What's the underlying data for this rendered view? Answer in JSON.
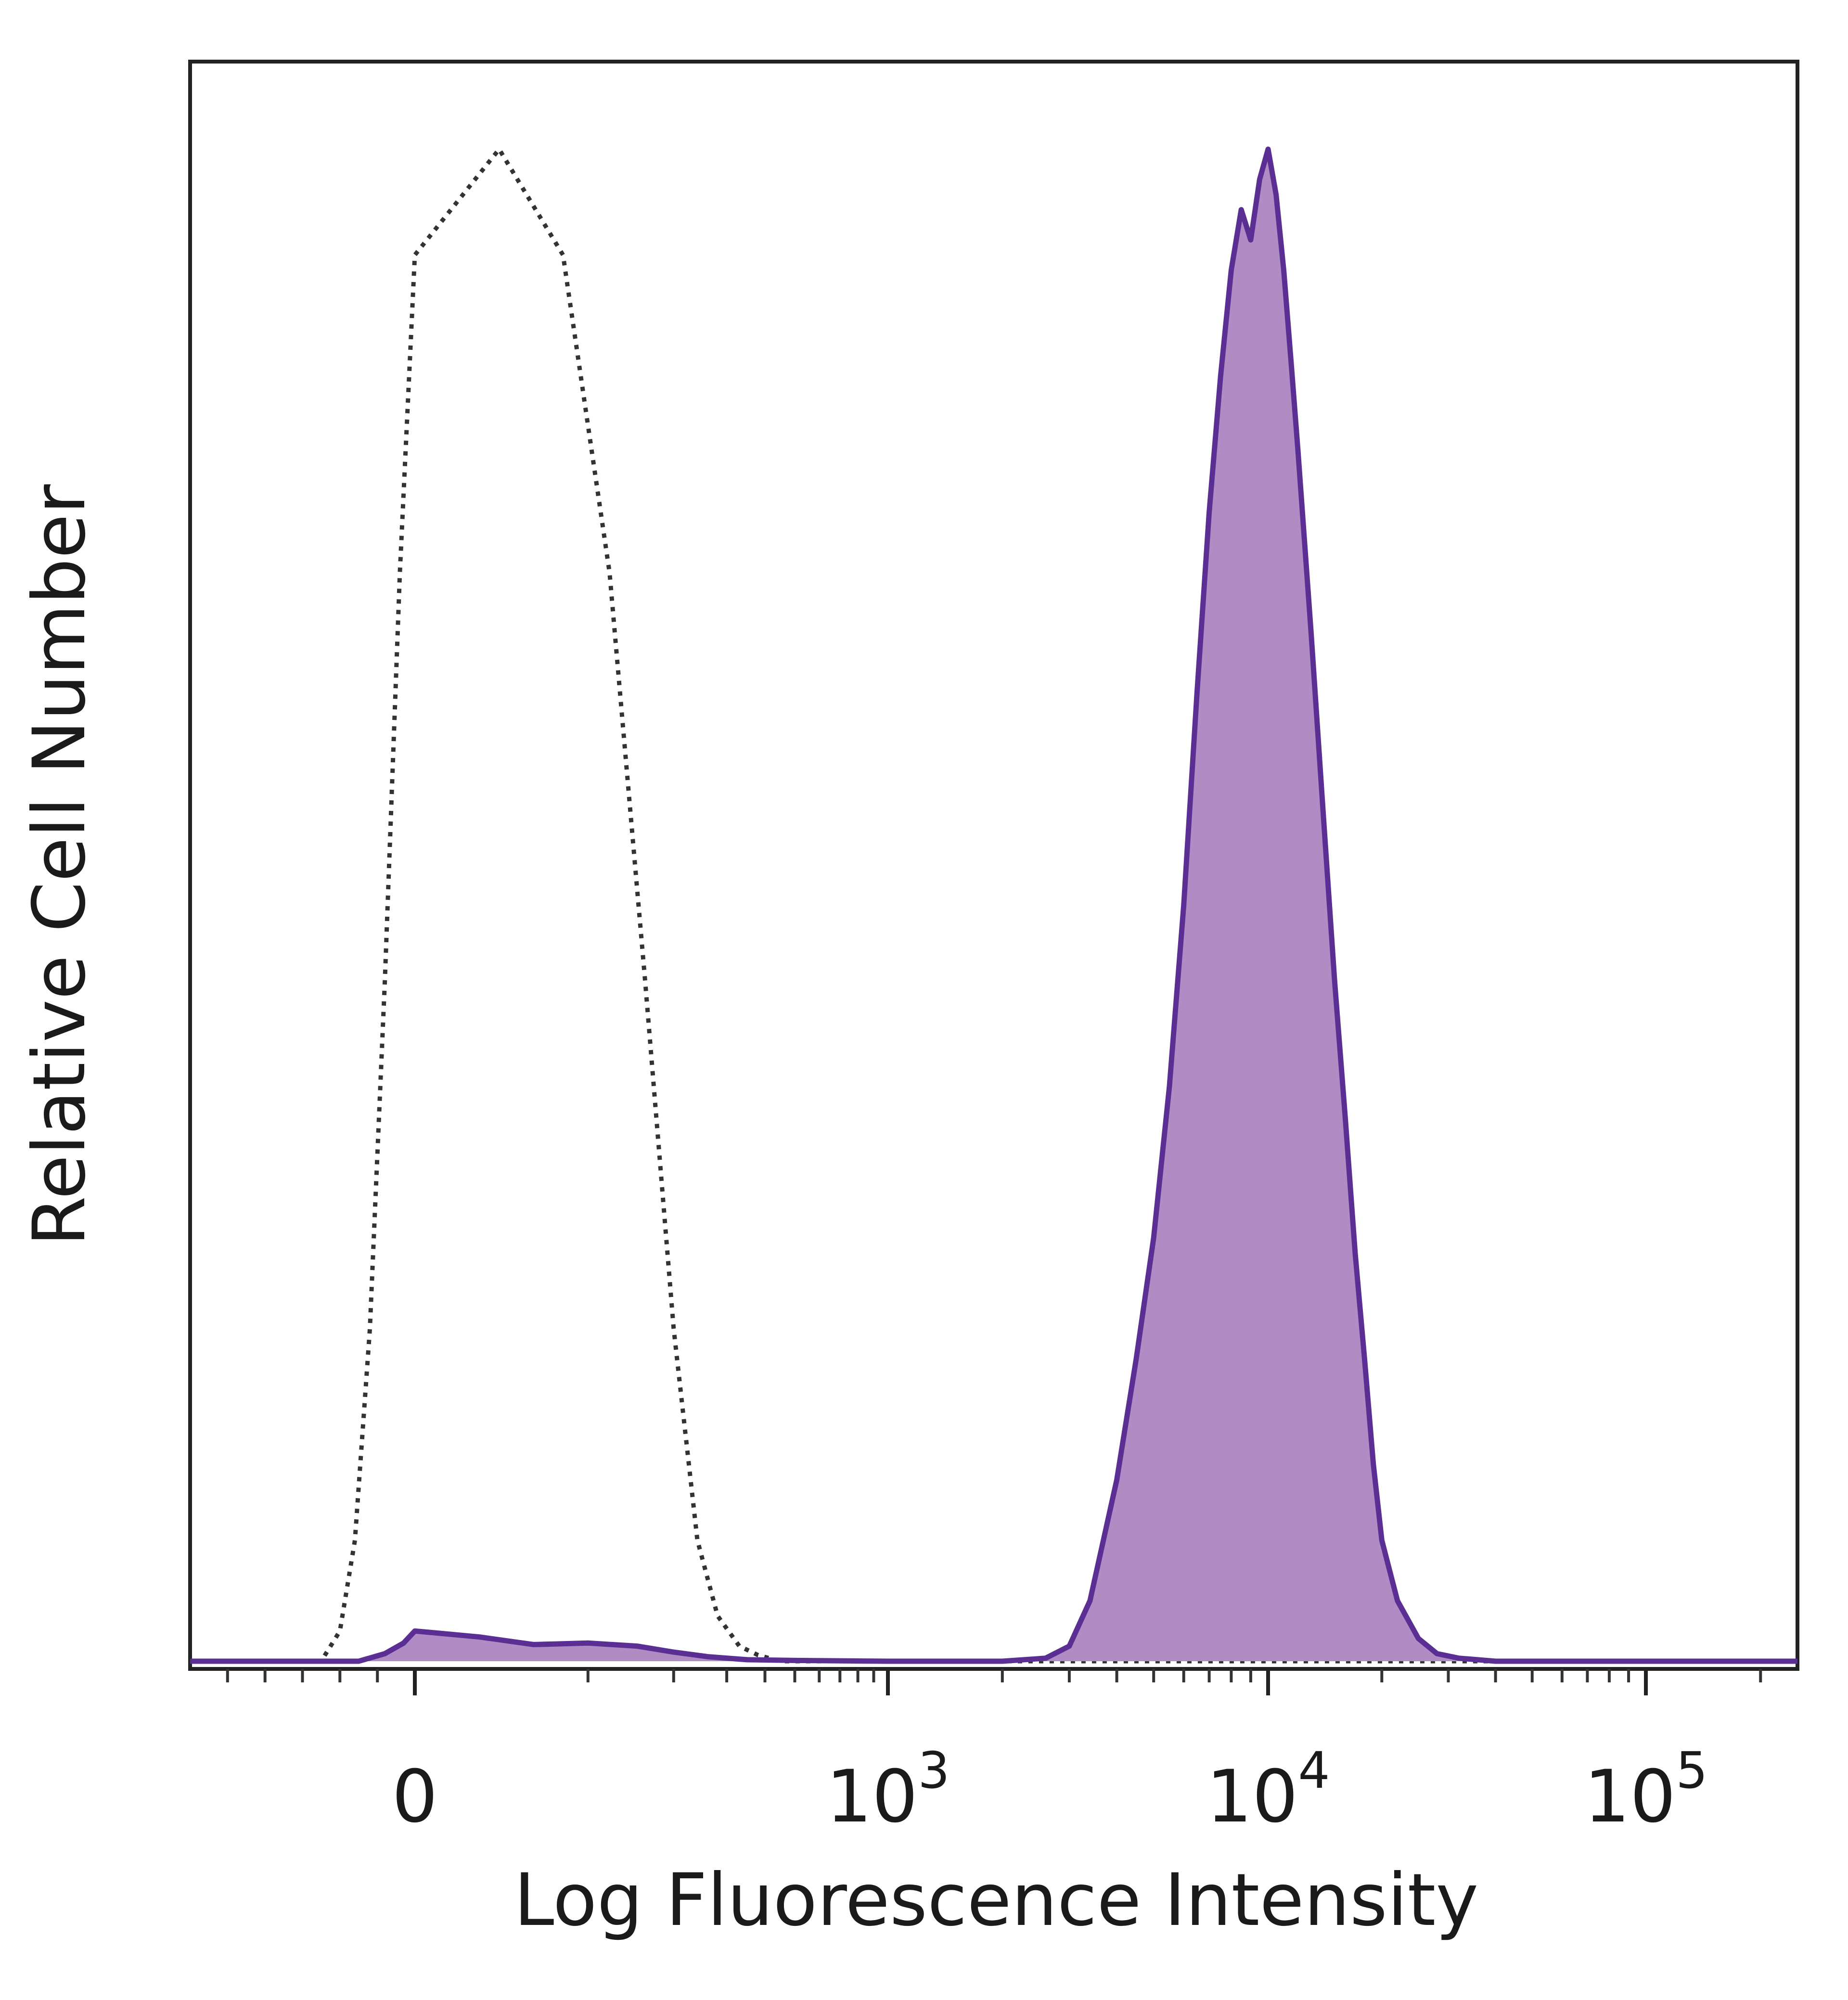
{
  "chart_data": {
    "type": "area",
    "xlabel": "Log Fluorescence Intensity",
    "ylabel": "Relative Cell Number",
    "x_scale": "biexponential",
    "x_ticks": [
      {
        "value": 0,
        "base": "0",
        "exp": ""
      },
      {
        "value": 1000,
        "base": "10",
        "exp": "3"
      },
      {
        "value": 10000,
        "base": "10",
        "exp": "4"
      },
      {
        "value": 100000,
        "base": "10",
        "exp": "5"
      }
    ],
    "x_range": [
      -600,
      250000
    ],
    "y_range": [
      0,
      100
    ],
    "grid": false,
    "legend": "none",
    "series": [
      {
        "style": "dotted",
        "color": "#333333",
        "x": [
          -600,
          -250,
          -200,
          -160,
          -120,
          -80,
          -40,
          0,
          40,
          80,
          120,
          160,
          200,
          240,
          280,
          330,
          380,
          450,
          900,
          3000,
          30000,
          250000
        ],
        "y": [
          0,
          0,
          2,
          8,
          22,
          45,
          72,
          93,
          100,
          93,
          72,
          45,
          22,
          8,
          3,
          1,
          0.4,
          0,
          0,
          0,
          0,
          0
        ]
      },
      {
        "style": "filled",
        "color": "#5b2e93",
        "fill": "#b08cc5",
        "x": [
          -600,
          -150,
          -80,
          -30,
          0,
          30,
          60,
          100,
          150,
          200,
          260,
          350,
          500,
          1000,
          2000,
          2600,
          3000,
          3400,
          4000,
          4500,
          5000,
          5500,
          6000,
          6500,
          7000,
          7500,
          8000,
          8500,
          9000,
          9500,
          10000,
          10500,
          11000,
          11500,
          12000,
          13000,
          14000,
          15000,
          16000,
          17000,
          18000,
          19000,
          20000,
          22000,
          25000,
          28000,
          32000,
          40000,
          100000,
          250000
        ],
        "y": [
          0,
          0,
          0.5,
          1.2,
          2,
          1.6,
          1.1,
          1.2,
          1.0,
          0.6,
          0.3,
          0.1,
          0.05,
          0,
          0,
          0.2,
          1,
          4,
          12,
          20,
          28,
          38,
          50,
          64,
          76,
          85,
          92,
          96,
          94,
          98,
          100,
          97,
          92,
          86,
          80,
          68,
          56,
          45,
          36,
          27,
          20,
          13,
          8,
          4,
          1.5,
          0.5,
          0.2,
          0,
          0,
          0
        ]
      }
    ]
  }
}
